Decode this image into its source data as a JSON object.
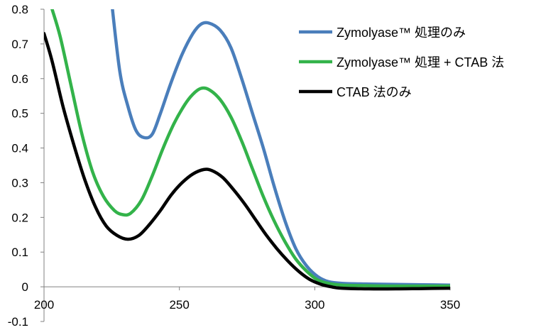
{
  "chart_data": {
    "type": "line",
    "title": "",
    "xlabel": "",
    "ylabel": "",
    "xlim": [
      200,
      350
    ],
    "ylim": [
      -0.1,
      0.8
    ],
    "x_ticks": [
      200,
      250,
      300,
      350
    ],
    "y_ticks": [
      -0.1,
      0,
      0.1,
      0.2,
      0.3,
      0.4,
      0.5,
      0.6,
      0.7,
      0.8
    ],
    "x_tick_labels": [
      "200",
      "250",
      "300",
      "350"
    ],
    "y_tick_labels": [
      "-0.1",
      "0",
      "0.1",
      "0.2",
      "0.3",
      "0.4",
      "0.5",
      "0.6",
      "0.7",
      "0.8"
    ],
    "grid": false,
    "legend_position": "top-right",
    "series": [
      {
        "name": "Zymolyase™ 処理のみ",
        "color": "#4a7ebb",
        "points": [
          [
            225,
            0.82
          ],
          [
            228,
            0.62
          ],
          [
            231,
            0.52
          ],
          [
            234,
            0.45
          ],
          [
            237,
            0.43
          ],
          [
            240,
            0.44
          ],
          [
            243,
            0.5
          ],
          [
            247,
            0.59
          ],
          [
            251,
            0.67
          ],
          [
            255,
            0.73
          ],
          [
            258,
            0.757
          ],
          [
            261,
            0.76
          ],
          [
            265,
            0.74
          ],
          [
            269,
            0.69
          ],
          [
            273,
            0.6
          ],
          [
            277,
            0.5
          ],
          [
            281,
            0.4
          ],
          [
            285,
            0.29
          ],
          [
            289,
            0.19
          ],
          [
            293,
            0.11
          ],
          [
            297,
            0.06
          ],
          [
            301,
            0.03
          ],
          [
            305,
            0.015
          ],
          [
            310,
            0.01
          ],
          [
            320,
            0.008
          ],
          [
            330,
            0.007
          ],
          [
            340,
            0.006
          ],
          [
            350,
            0.005
          ]
        ]
      },
      {
        "name": "Zymolyase™ 処理 + CTAB 法",
        "color": "#33b34a",
        "points": [
          [
            203,
            0.8
          ],
          [
            206,
            0.72
          ],
          [
            210,
            0.58
          ],
          [
            214,
            0.44
          ],
          [
            218,
            0.33
          ],
          [
            222,
            0.26
          ],
          [
            226,
            0.22
          ],
          [
            229,
            0.208
          ],
          [
            232,
            0.212
          ],
          [
            236,
            0.25
          ],
          [
            240,
            0.32
          ],
          [
            244,
            0.4
          ],
          [
            248,
            0.47
          ],
          [
            252,
            0.525
          ],
          [
            255,
            0.555
          ],
          [
            258,
            0.572
          ],
          [
            261,
            0.568
          ],
          [
            265,
            0.54
          ],
          [
            269,
            0.49
          ],
          [
            273,
            0.42
          ],
          [
            277,
            0.34
          ],
          [
            281,
            0.26
          ],
          [
            285,
            0.19
          ],
          [
            289,
            0.13
          ],
          [
            293,
            0.08
          ],
          [
            297,
            0.045
          ],
          [
            301,
            0.02
          ],
          [
            305,
            0.01
          ],
          [
            310,
            0.005
          ],
          [
            320,
            0.003
          ],
          [
            330,
            0.002
          ],
          [
            340,
            0.002
          ],
          [
            350,
            0.002
          ]
        ]
      },
      {
        "name": "CTAB 法のみ",
        "color": "#000000",
        "points": [
          [
            200,
            0.73
          ],
          [
            203,
            0.65
          ],
          [
            207,
            0.52
          ],
          [
            211,
            0.41
          ],
          [
            215,
            0.31
          ],
          [
            219,
            0.23
          ],
          [
            223,
            0.175
          ],
          [
            227,
            0.148
          ],
          [
            231,
            0.137
          ],
          [
            235,
            0.148
          ],
          [
            239,
            0.18
          ],
          [
            243,
            0.22
          ],
          [
            247,
            0.265
          ],
          [
            251,
            0.3
          ],
          [
            255,
            0.325
          ],
          [
            259,
            0.338
          ],
          [
            262,
            0.335
          ],
          [
            266,
            0.315
          ],
          [
            270,
            0.28
          ],
          [
            274,
            0.24
          ],
          [
            278,
            0.195
          ],
          [
            282,
            0.15
          ],
          [
            286,
            0.11
          ],
          [
            290,
            0.075
          ],
          [
            294,
            0.045
          ],
          [
            298,
            0.022
          ],
          [
            302,
            0.008
          ],
          [
            306,
            0.0
          ],
          [
            310,
            -0.004
          ],
          [
            320,
            -0.006
          ],
          [
            330,
            -0.006
          ],
          [
            340,
            -0.005
          ],
          [
            350,
            -0.004
          ]
        ]
      }
    ]
  }
}
